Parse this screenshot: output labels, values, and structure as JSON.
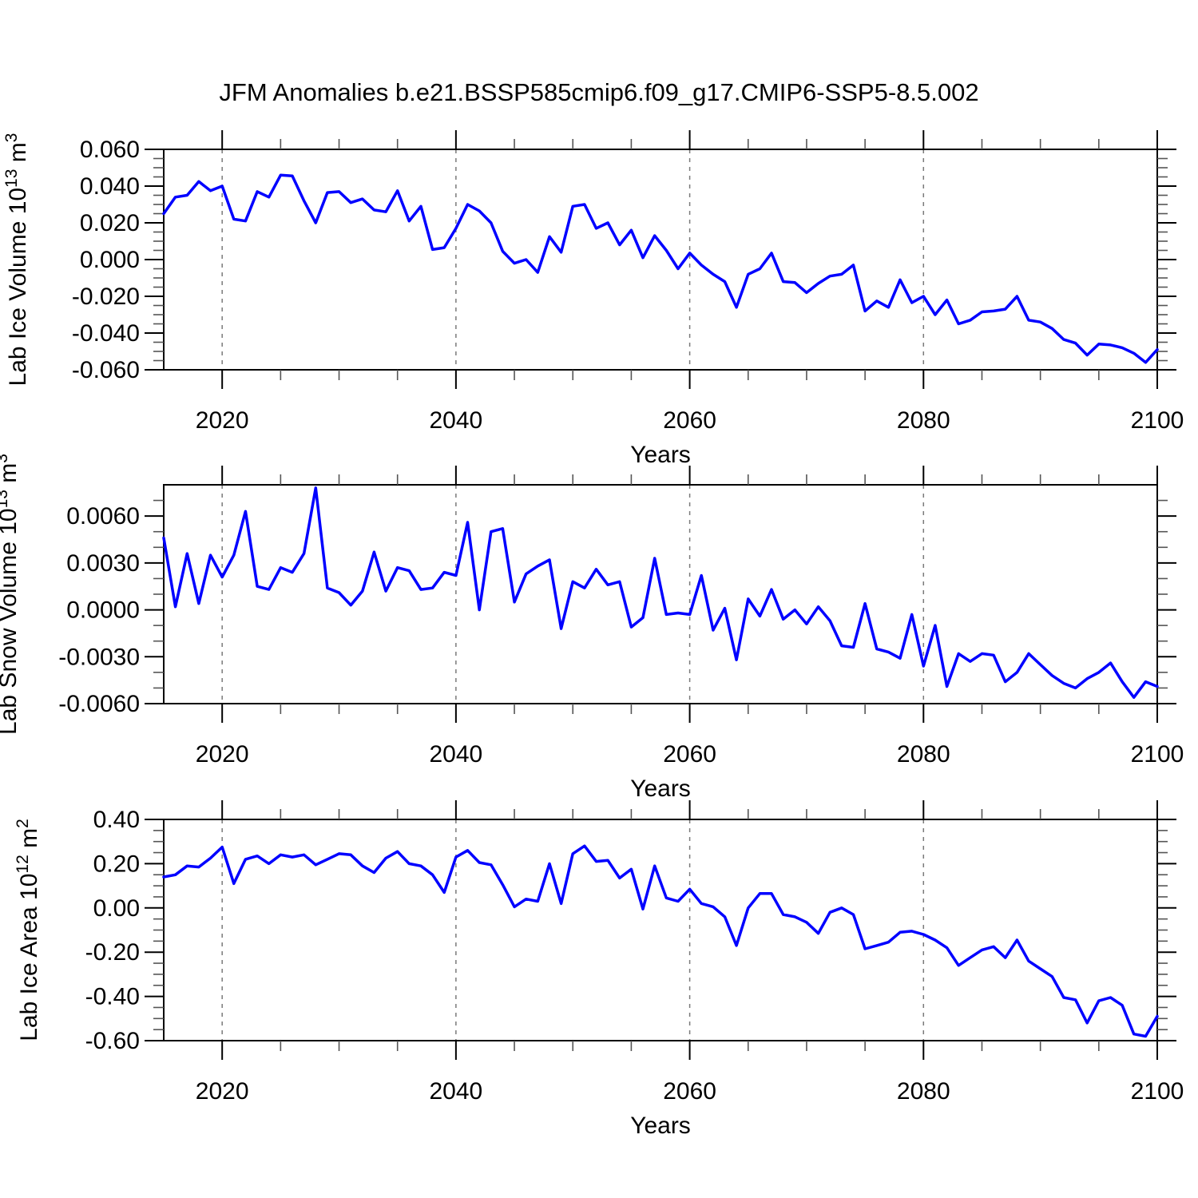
{
  "title": "JFM Anomalies b.e21.BSSP585cmip6.f09_g17.CMIP6-SSP5-8.5.002",
  "colors": {
    "line": "#0000ff",
    "grid": "#7a7a7a",
    "axis": "#000000",
    "minor_tick": "#555555",
    "background": "#ffffff"
  },
  "x_axis": {
    "label": "Years",
    "start": 2015,
    "end": 2100,
    "major_ticks": [
      2020,
      2040,
      2060,
      2080,
      2100
    ],
    "minor_step": 5,
    "gridlines": [
      2020,
      2040,
      2060,
      2080
    ]
  },
  "chart_data": [
    {
      "type": "line",
      "name": "lab-ice-volume",
      "ylabel_segments": [
        {
          "text": "Lab Ice Volume 10"
        },
        {
          "text": "13",
          "sup": true
        },
        {
          "text": " m"
        },
        {
          "text": "3",
          "sup": true
        }
      ],
      "ylim": [
        -0.06,
        0.06
      ],
      "y_minor_step": 0.005,
      "yticks": [
        {
          "v": 0.06,
          "label": "0.060"
        },
        {
          "v": 0.04,
          "label": "0.040"
        },
        {
          "v": 0.02,
          "label": "0.020"
        },
        {
          "v": 0.0,
          "label": "0.000"
        },
        {
          "v": -0.02,
          "label": "-0.020"
        },
        {
          "v": -0.04,
          "label": "-0.040"
        },
        {
          "v": -0.06,
          "label": "-0.060"
        }
      ],
      "x_start": 2015,
      "values": [
        0.025,
        0.034,
        0.035,
        0.0425,
        0.0375,
        0.04,
        0.022,
        0.021,
        0.037,
        0.034,
        0.046,
        0.0455,
        0.032,
        0.02,
        0.0365,
        0.037,
        0.031,
        0.033,
        0.027,
        0.026,
        0.0375,
        0.021,
        0.029,
        0.0055,
        0.0065,
        0.017,
        0.03,
        0.0265,
        0.02,
        0.0045,
        -0.002,
        0.0,
        -0.007,
        0.0125,
        0.004,
        0.029,
        0.03,
        0.017,
        0.02,
        0.008,
        0.016,
        0.001,
        0.013,
        0.005,
        -0.005,
        0.0035,
        -0.003,
        -0.008,
        -0.012,
        -0.026,
        -0.008,
        -0.005,
        0.0035,
        -0.012,
        -0.0125,
        -0.018,
        -0.013,
        -0.009,
        -0.008,
        -0.003,
        -0.028,
        -0.0225,
        -0.026,
        -0.011,
        -0.0235,
        -0.02,
        -0.03,
        -0.022,
        -0.035,
        -0.033,
        -0.0285,
        -0.028,
        -0.027,
        -0.02,
        -0.033,
        -0.034,
        -0.0375,
        -0.0435,
        -0.0455,
        -0.052,
        -0.046,
        -0.0465,
        -0.048,
        -0.051,
        -0.056,
        -0.049
      ]
    },
    {
      "type": "line",
      "name": "lab-snow-volume",
      "ylabel_segments": [
        {
          "text": "Lab Snow Volume 10"
        },
        {
          "text": "13",
          "sup": true
        },
        {
          "text": " m"
        },
        {
          "text": "3",
          "sup": true
        }
      ],
      "ylim": [
        -0.006,
        0.008
      ],
      "y_minor_step": 0.001,
      "yticks": [
        {
          "v": 0.006,
          "label": "0.0060"
        },
        {
          "v": 0.003,
          "label": "0.0030"
        },
        {
          "v": 0.0,
          "label": "0.0000"
        },
        {
          "v": -0.003,
          "label": "-0.0030"
        },
        {
          "v": -0.006,
          "label": "-0.0060"
        }
      ],
      "x_start": 2015,
      "values": [
        0.0046,
        0.0002,
        0.0036,
        0.0004,
        0.0035,
        0.0021,
        0.0035,
        0.0063,
        0.0015,
        0.0013,
        0.0027,
        0.0024,
        0.0036,
        0.0078,
        0.0014,
        0.0011,
        0.0003,
        0.0012,
        0.0037,
        0.0012,
        0.0027,
        0.0025,
        0.0013,
        0.0014,
        0.0024,
        0.0022,
        0.0056,
        0.0,
        0.005,
        0.0052,
        0.0005,
        0.0023,
        0.0028,
        0.0032,
        -0.0012,
        0.0018,
        0.0014,
        0.0026,
        0.0016,
        0.0018,
        -0.0011,
        -0.0005,
        0.0033,
        -0.0003,
        -0.0002,
        -0.0003,
        0.0022,
        -0.0013,
        0.0001,
        -0.0032,
        0.0007,
        -0.0004,
        0.0013,
        -0.0006,
        0.0,
        -0.0009,
        0.0002,
        -0.0007,
        -0.0023,
        -0.0024,
        0.0004,
        -0.0025,
        -0.0027,
        -0.0031,
        -0.0003,
        -0.0036,
        -0.001,
        -0.0049,
        -0.0028,
        -0.0033,
        -0.0028,
        -0.0029,
        -0.0046,
        -0.004,
        -0.0028,
        -0.0035,
        -0.0042,
        -0.0047,
        -0.005,
        -0.0044,
        -0.004,
        -0.0034,
        -0.0046,
        -0.0056,
        -0.0046,
        -0.0049
      ]
    },
    {
      "type": "line",
      "name": "lab-ice-area",
      "ylabel_segments": [
        {
          "text": "Lab Ice Area 10"
        },
        {
          "text": "12",
          "sup": true
        },
        {
          "text": " m"
        },
        {
          "text": "2",
          "sup": true
        }
      ],
      "ylim": [
        -0.6,
        0.4
      ],
      "y_minor_step": 0.05,
      "yticks": [
        {
          "v": 0.4,
          "label": "0.40"
        },
        {
          "v": 0.2,
          "label": "0.20"
        },
        {
          "v": 0.0,
          "label": "0.00"
        },
        {
          "v": -0.2,
          "label": "-0.20"
        },
        {
          "v": -0.4,
          "label": "-0.40"
        },
        {
          "v": -0.6,
          "label": "-0.60"
        }
      ],
      "x_start": 2015,
      "values": [
        0.14,
        0.15,
        0.19,
        0.185,
        0.225,
        0.275,
        0.11,
        0.22,
        0.235,
        0.2,
        0.24,
        0.23,
        0.24,
        0.195,
        0.22,
        0.245,
        0.24,
        0.19,
        0.16,
        0.225,
        0.255,
        0.2,
        0.19,
        0.15,
        0.07,
        0.23,
        0.26,
        0.205,
        0.195,
        0.105,
        0.005,
        0.04,
        0.03,
        0.2,
        0.02,
        0.245,
        0.28,
        0.21,
        0.215,
        0.135,
        0.175,
        -0.005,
        0.19,
        0.045,
        0.03,
        0.085,
        0.02,
        0.005,
        -0.04,
        -0.17,
        0.0,
        0.065,
        0.065,
        -0.03,
        -0.04,
        -0.065,
        -0.115,
        -0.02,
        0.0,
        -0.03,
        -0.185,
        -0.17,
        -0.155,
        -0.11,
        -0.105,
        -0.12,
        -0.145,
        -0.18,
        -0.26,
        -0.225,
        -0.19,
        -0.175,
        -0.225,
        -0.145,
        -0.24,
        -0.275,
        -0.31,
        -0.405,
        -0.415,
        -0.52,
        -0.42,
        -0.405,
        -0.44,
        -0.57,
        -0.58,
        -0.49
      ]
    }
  ]
}
